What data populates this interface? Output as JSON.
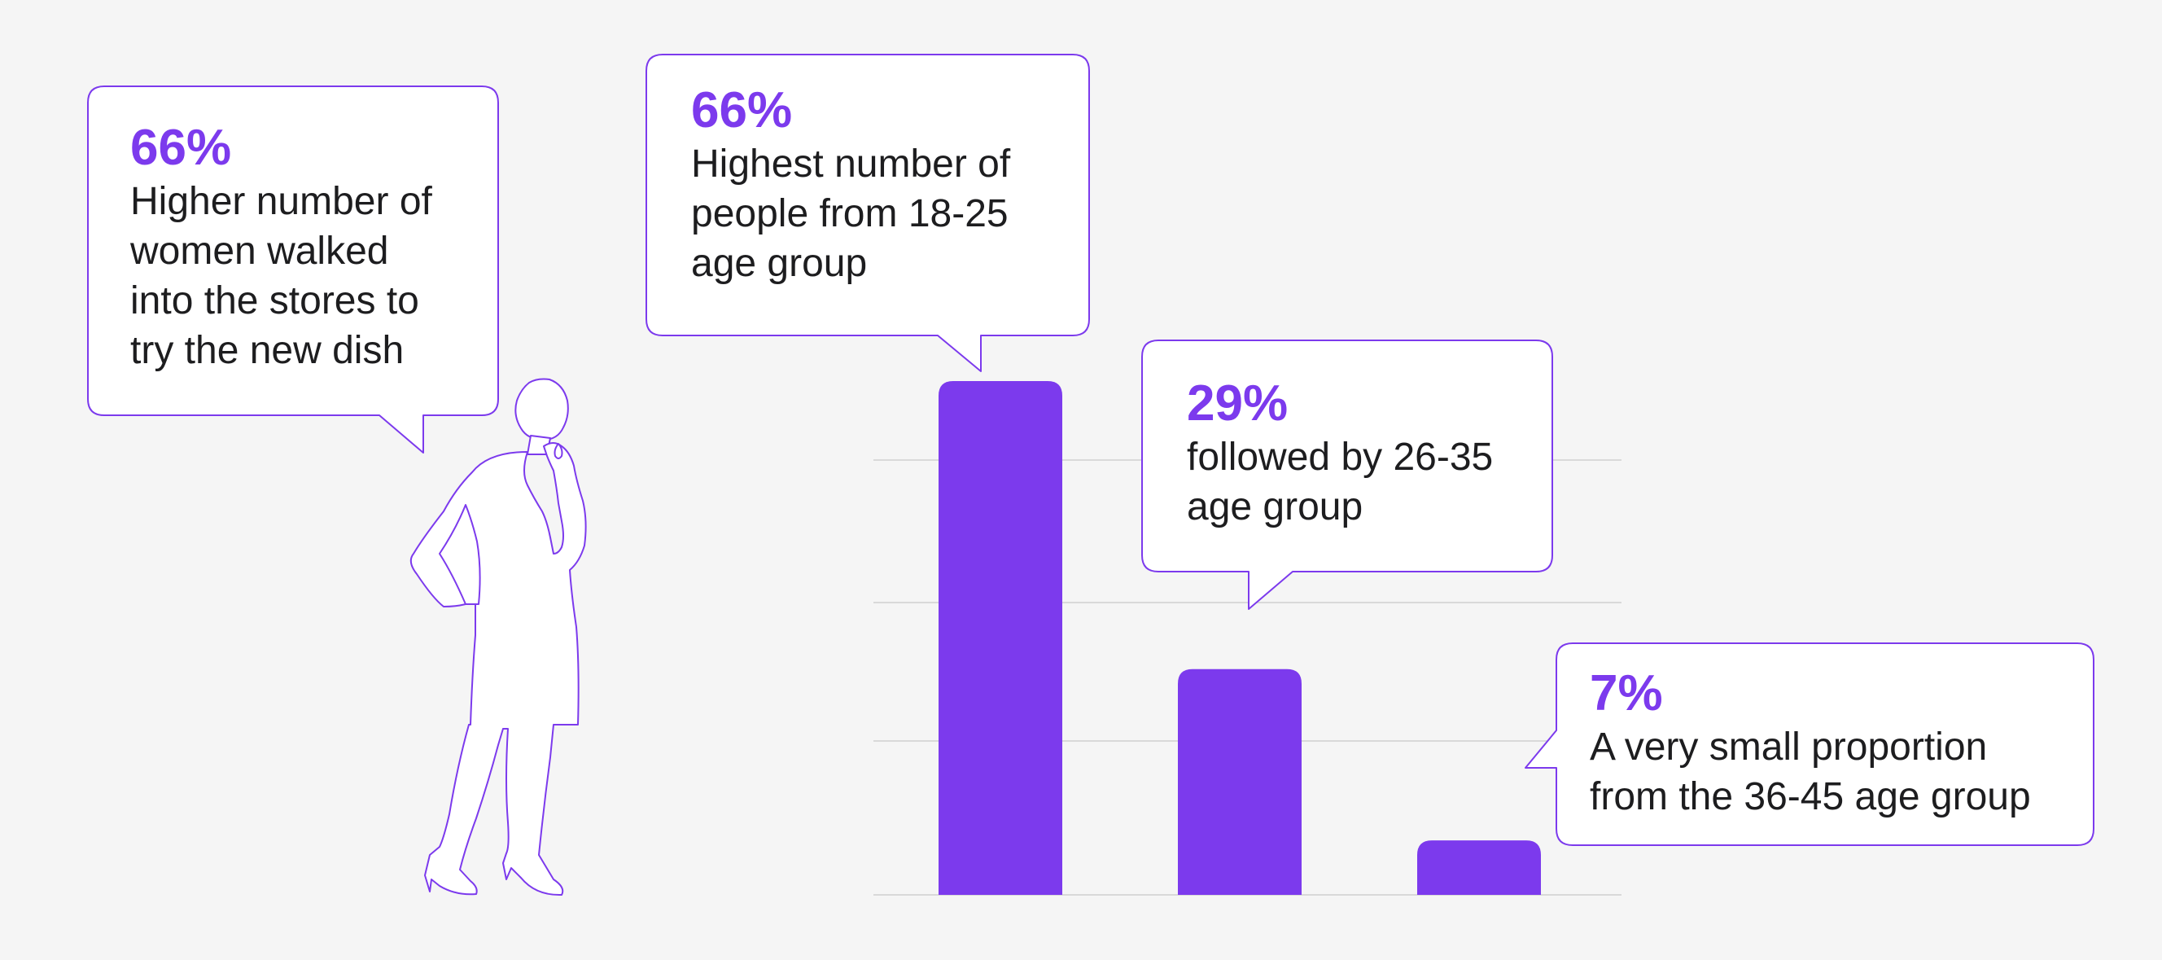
{
  "colors": {
    "background": "#f5f5f5",
    "bar": "#7c3aed",
    "accent_text": "#7c3aed",
    "text": "#1d1d1f",
    "callout_border": "#7c3aed",
    "grid": "#d9d9d9"
  },
  "icons": {
    "figure": "woman-silhouette-icon"
  },
  "callouts": [
    {
      "value": "66%",
      "text": "Higher number of\nwomen walked\ninto the stores to\ntry the new dish"
    },
    {
      "value": "66%",
      "text": "Highest number of\npeople from 18-25\nage group"
    },
    {
      "value": "29%",
      "text": "followed by 26-35\nage group"
    },
    {
      "value": "7%",
      "text": "A very small proportion\nfrom the 36-45 age group"
    }
  ],
  "chart_data": {
    "type": "bar",
    "categories": [
      "18-25",
      "26-35",
      "36-45"
    ],
    "values": [
      66,
      29,
      7
    ],
    "unit": "%",
    "ylim": [
      0,
      70
    ],
    "grid": true,
    "axis_labels_shown": false
  }
}
